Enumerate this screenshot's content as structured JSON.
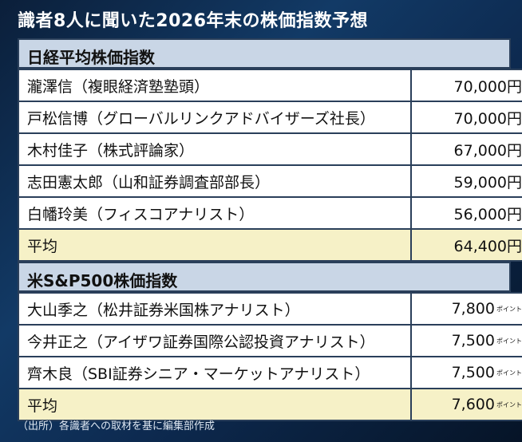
{
  "title": "識者8人に聞いた2026年末の株価指数予想",
  "sections": [
    {
      "header": "日経平均株価指数",
      "rows": [
        {
          "name": "瀧澤信（複眼経済塾塾頭）",
          "value": "70,000円"
        },
        {
          "name": "戸松信博（グローバルリンクアドバイザーズ社長）",
          "value": "70,000円"
        },
        {
          "name": "木村佳子（株式評論家）",
          "value": "67,000円"
        },
        {
          "name": "志田憲太郎（山和証券調査部部長）",
          "value": "59,000円"
        },
        {
          "name": "白幡玲美（フィスコアナリスト）",
          "value": "56,000円"
        }
      ],
      "avg": {
        "name": "平均",
        "value": "64,400円"
      }
    },
    {
      "header": "米S&P500株価指数",
      "rows": [
        {
          "name": "大山季之（松井証券米国株アナリスト）",
          "value": "7,800",
          "unit": "ポイント"
        },
        {
          "name": "今井正之（アイザワ証券国際公認投資アナリスト）",
          "value": "7,500",
          "unit": "ポイント"
        },
        {
          "name": "齊木良（SBI証券シニア・マーケットアナリスト）",
          "value": "7,500",
          "unit": "ポイント"
        }
      ],
      "avg": {
        "name": "平均",
        "value": "7,600",
        "unit": "ポイント"
      }
    }
  ],
  "source": "（出所）各識者への取材を基に編集部作成"
}
